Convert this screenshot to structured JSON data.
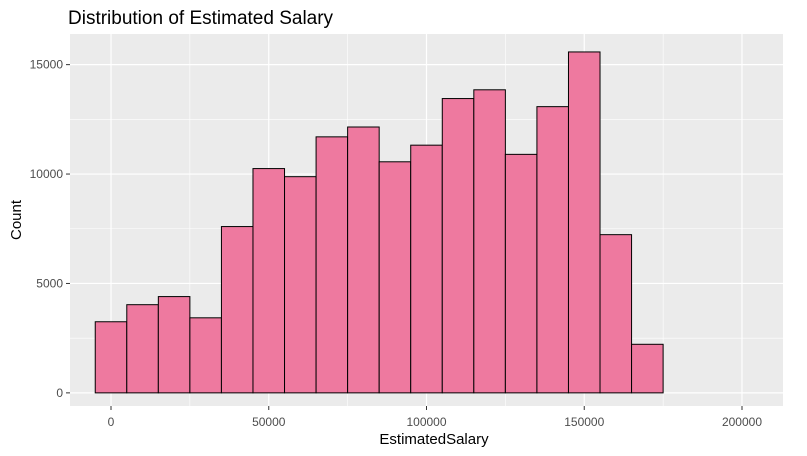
{
  "chart_data": {
    "type": "bar",
    "title": "Distribution of Estimated Salary",
    "xlabel": "EstimatedSalary",
    "ylabel": "Count",
    "bin_width": 10000,
    "bins": [
      {
        "start": -5000,
        "end": 5000,
        "count": 3250
      },
      {
        "start": 5000,
        "end": 15000,
        "count": 4030
      },
      {
        "start": 15000,
        "end": 25000,
        "count": 4400
      },
      {
        "start": 25000,
        "end": 35000,
        "count": 3430
      },
      {
        "start": 35000,
        "end": 45000,
        "count": 7600
      },
      {
        "start": 45000,
        "end": 55000,
        "count": 10250
      },
      {
        "start": 55000,
        "end": 65000,
        "count": 9880
      },
      {
        "start": 65000,
        "end": 75000,
        "count": 11700
      },
      {
        "start": 75000,
        "end": 85000,
        "count": 12150
      },
      {
        "start": 85000,
        "end": 95000,
        "count": 10560
      },
      {
        "start": 95000,
        "end": 105000,
        "count": 11320
      },
      {
        "start": 105000,
        "end": 115000,
        "count": 13450
      },
      {
        "start": 115000,
        "end": 125000,
        "count": 13850
      },
      {
        "start": 125000,
        "end": 135000,
        "count": 10900
      },
      {
        "start": 135000,
        "end": 145000,
        "count": 13080
      },
      {
        "start": 145000,
        "end": 155000,
        "count": 15580
      },
      {
        "start": 155000,
        "end": 165000,
        "count": 7230
      },
      {
        "start": 165000,
        "end": 175000,
        "count": 2220
      }
    ],
    "x_ticks": [
      {
        "value": 0,
        "label": "0"
      },
      {
        "value": 50000,
        "label": "50000"
      },
      {
        "value": 100000,
        "label": "100000"
      },
      {
        "value": 150000,
        "label": "150000"
      },
      {
        "value": 200000,
        "label": "200000"
      }
    ],
    "y_ticks": [
      {
        "value": 0,
        "label": "0"
      },
      {
        "value": 5000,
        "label": "5000"
      },
      {
        "value": 10000,
        "label": "10000"
      },
      {
        "value": 15000,
        "label": "15000"
      }
    ],
    "xlim": [
      -13000,
      213000
    ],
    "ylim": [
      -600,
      16400
    ],
    "grid": true,
    "bar_fill": "#ee799f",
    "bar_stroke": "#000000",
    "panel_background": "#ebebeb",
    "grid_color": "#ffffff"
  }
}
